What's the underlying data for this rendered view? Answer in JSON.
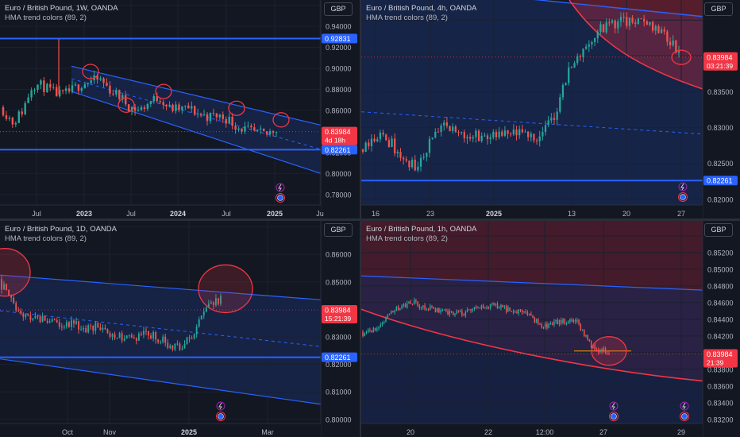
{
  "colors": {
    "background": "#131722",
    "grid": "#1c2030",
    "up": "#26a69a",
    "down": "#ef5350",
    "line": "#2962ff",
    "red": "#f23645",
    "axis_text": "#b2b5be"
  },
  "icons": [
    "lightning-icon",
    "calendar-events-icon"
  ],
  "panels": [
    {
      "title": "Euro / British Pound, 1W, OANDA",
      "indicator": "HMA trend colors (89, 2)",
      "currency": "GBP",
      "yticks": [
        "0.96000",
        "0.94000",
        "0.92000",
        "0.90000",
        "0.88000",
        "0.86000",
        "0.84000",
        "0.82000",
        "0.80000",
        "0.78000"
      ],
      "xticks": [
        "Jul",
        "2023",
        "Jul",
        "2024",
        "Jul",
        "2025",
        "Ju"
      ],
      "last_price": "0.83984",
      "countdown": "4d 18h",
      "level1": "0.92831",
      "level2": "0.82261"
    },
    {
      "title": "Euro / British Pound, 4h, OANDA",
      "indicator": "HMA trend colors (89, 2)",
      "currency": "GBP",
      "yticks": [
        "0.84500",
        "0.84000",
        "0.83500",
        "0.83000",
        "0.82500",
        "0.82000"
      ],
      "xticks": [
        "16",
        "23",
        "2025",
        "13",
        "20",
        "27"
      ],
      "last_price": "0.83984",
      "countdown": "03:21:39",
      "level2": "0.82261"
    },
    {
      "title": "Euro / British Pound, 1D, OANDA",
      "indicator": "HMA trend colors (89, 2)",
      "currency": "GBP",
      "yticks": [
        "0.87000",
        "0.86000",
        "0.85000",
        "0.84000",
        "0.83000",
        "0.82000",
        "0.81000",
        "0.80000"
      ],
      "xticks": [
        "Oct",
        "Nov",
        "2025",
        "Mar"
      ],
      "last_price": "0.83984",
      "countdown": "15:21:39",
      "level2": "0.82261"
    },
    {
      "title": "Euro / British Pound, 1h, OANDA",
      "indicator": "HMA trend colors (89, 2)",
      "currency": "GBP",
      "yticks": [
        "0.85400",
        "0.85200",
        "0.85000",
        "0.84800",
        "0.84600",
        "0.84400",
        "0.84200",
        "0.84000",
        "0.83800",
        "0.83600",
        "0.83400",
        "0.83200"
      ],
      "xticks": [
        "20",
        "22",
        "12:00",
        "27",
        "29"
      ],
      "last_price": "0.83984",
      "countdown": "21:39"
    }
  ],
  "chart_data": [
    {
      "type": "candlestick",
      "title": "Euro / British Pound, 1W, OANDA",
      "ylim": [
        0.77,
        0.965
      ],
      "price_line": 0.83984,
      "horizontal_levels": [
        0.92831,
        0.82261
      ],
      "path": [
        [
          0.863,
          0.858
        ],
        [
          0.852,
          0.845
        ],
        [
          0.858,
          0.862
        ],
        [
          0.87,
          0.9
        ],
        [
          0.875,
          0.892
        ],
        [
          0.885,
          0.87
        ],
        [
          0.872,
          0.876
        ],
        [
          0.878,
          0.88
        ],
        [
          0.882,
          0.888
        ],
        [
          0.886,
          0.89
        ],
        [
          0.893,
          0.885
        ],
        [
          0.88,
          0.878
        ],
        [
          0.876,
          0.87
        ],
        [
          0.866,
          0.86
        ],
        [
          0.858,
          0.862
        ],
        [
          0.866,
          0.87
        ],
        [
          0.874,
          0.872
        ],
        [
          0.868,
          0.856
        ],
        [
          0.858,
          0.864
        ],
        [
          0.866,
          0.858
        ],
        [
          0.86,
          0.854
        ],
        [
          0.856,
          0.852
        ],
        [
          0.854,
          0.856
        ],
        [
          0.856,
          0.848
        ],
        [
          0.846,
          0.843
        ],
        [
          0.843,
          0.839
        ],
        [
          0.84,
          0.836
        ],
        [
          0.834,
          0.84
        ],
        [
          0.842,
          0.845
        ]
      ],
      "trend_channel": {
        "upper": [
          0.9,
          0.845
        ],
        "lower": [
          0.877,
          0.8
        ]
      }
    },
    {
      "type": "candlestick",
      "title": "Euro / British Pound, 4h, OANDA",
      "ylim": [
        0.8192,
        0.8478
      ],
      "price_line": 0.83984,
      "horizontal_levels": [
        0.82261
      ],
      "path": [
        [
          0.827,
          0.828
        ],
        [
          0.83,
          0.828
        ],
        [
          0.827,
          0.829
        ],
        [
          0.826,
          0.8245
        ],
        [
          0.823,
          0.8255
        ],
        [
          0.828,
          0.8295
        ],
        [
          0.8295,
          0.8305
        ],
        [
          0.83,
          0.8285
        ],
        [
          0.828,
          0.8298
        ],
        [
          0.83,
          0.8275
        ],
        [
          0.828,
          0.8292
        ],
        [
          0.8295,
          0.8285
        ],
        [
          0.8285,
          0.8293
        ],
        [
          0.8292,
          0.8286
        ],
        [
          0.8288,
          0.8352
        ],
        [
          0.8365,
          0.8395
        ],
        [
          0.841,
          0.8405
        ],
        [
          0.8425,
          0.8438
        ],
        [
          0.8443,
          0.8448
        ],
        [
          0.845,
          0.8445
        ],
        [
          0.8447,
          0.8445
        ],
        [
          0.8449,
          0.8442
        ],
        [
          0.844,
          0.8418
        ],
        [
          0.8415,
          0.8398
        ]
      ]
    },
    {
      "type": "candlestick",
      "title": "Euro / British Pound, 1D, OANDA",
      "ylim": [
        0.7985,
        0.8722
      ],
      "price_line": 0.83984,
      "horizontal_levels": [
        0.82261
      ],
      "path": [
        [
          0.851,
          0.847
        ],
        [
          0.842,
          0.84
        ],
        [
          0.836,
          0.837
        ],
        [
          0.838,
          0.836
        ],
        [
          0.835,
          0.834
        ],
        [
          0.836,
          0.834
        ],
        [
          0.8325,
          0.833
        ],
        [
          0.835,
          0.833
        ],
        [
          0.832,
          0.8285
        ],
        [
          0.829,
          0.8305
        ],
        [
          0.831,
          0.8295
        ],
        [
          0.8305,
          0.831
        ],
        [
          0.8285,
          0.827
        ],
        [
          0.8255,
          0.8278
        ],
        [
          0.8285,
          0.831
        ],
        [
          0.8365,
          0.8465
        ],
        [
          0.846,
          0.8405
        ]
      ]
    },
    {
      "type": "candlestick",
      "title": "Euro / British Pound, 1h, OANDA",
      "ylim": [
        0.8315,
        0.8558
      ],
      "price_line": 0.83984,
      "path": [
        [
          0.8425,
          0.8422
        ],
        [
          0.8425,
          0.844
        ],
        [
          0.845,
          0.8455
        ],
        [
          0.846,
          0.846
        ],
        [
          0.8455,
          0.8452
        ],
        [
          0.8452,
          0.8445
        ],
        [
          0.8442,
          0.845
        ],
        [
          0.8452,
          0.8455
        ],
        [
          0.8458,
          0.8455
        ],
        [
          0.8452,
          0.8448
        ],
        [
          0.8449,
          0.8445
        ],
        [
          0.8432,
          0.8428
        ],
        [
          0.8432,
          0.8442
        ],
        [
          0.8448,
          0.843
        ],
        [
          0.841,
          0.8402
        ],
        [
          0.8402,
          0.8398
        ]
      ]
    }
  ]
}
